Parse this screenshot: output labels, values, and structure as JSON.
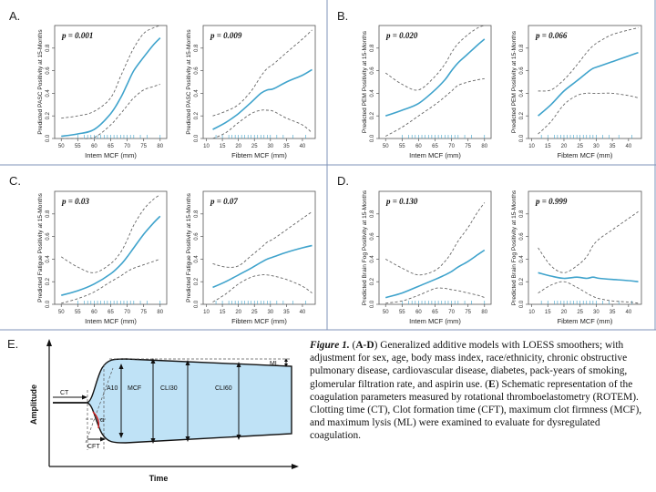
{
  "chart_data": [
    {
      "type": "line",
      "panel": "A.",
      "p_value": "p = 0.001",
      "ylabel": "Predicted PASC Positivity at 15-Months",
      "xlabel": "Intem MCF (mm)",
      "xlim": [
        48,
        82
      ],
      "ylim": [
        0,
        1
      ],
      "xticks": [
        50,
        55,
        60,
        65,
        70,
        75,
        80
      ],
      "yticks": [
        0.0,
        0.2,
        0.4,
        0.6,
        0.8
      ],
      "x": [
        50,
        55,
        60,
        65,
        68,
        70,
        72,
        75,
        78,
        80
      ],
      "series": [
        {
          "role": "fit",
          "values": [
            0.02,
            0.04,
            0.08,
            0.22,
            0.36,
            0.48,
            0.6,
            0.72,
            0.83,
            0.89
          ]
        },
        {
          "role": "upper",
          "values": [
            0.18,
            0.2,
            0.24,
            0.36,
            0.55,
            0.68,
            0.8,
            0.93,
            0.98,
            1.0
          ]
        },
        {
          "role": "lower",
          "values": [
            0.0,
            0.0,
            0.01,
            0.12,
            0.22,
            0.29,
            0.36,
            0.43,
            0.46,
            0.48
          ]
        }
      ],
      "rug": [
        55,
        57,
        58,
        59,
        60,
        61,
        62,
        63,
        64,
        65,
        66,
        67,
        68,
        69,
        70,
        71,
        72,
        74,
        76,
        80
      ]
    },
    {
      "type": "line",
      "panel": "",
      "p_value": "p = 0.009",
      "ylabel": "Predicted PASC Positivity at 15-Months",
      "xlabel": "Fibtem MCF (mm)",
      "xlim": [
        9,
        44
      ],
      "ylim": [
        0,
        1
      ],
      "xticks": [
        10,
        15,
        20,
        25,
        30,
        35,
        40
      ],
      "yticks": [
        0.0,
        0.2,
        0.4,
        0.6,
        0.8
      ],
      "x": [
        12,
        16,
        20,
        24,
        27,
        29,
        31,
        35,
        40,
        43
      ],
      "series": [
        {
          "role": "fit",
          "values": [
            0.08,
            0.14,
            0.22,
            0.32,
            0.4,
            0.43,
            0.44,
            0.5,
            0.56,
            0.61
          ]
        },
        {
          "role": "upper",
          "values": [
            0.2,
            0.24,
            0.3,
            0.42,
            0.55,
            0.62,
            0.66,
            0.76,
            0.88,
            0.96
          ]
        },
        {
          "role": "lower",
          "values": [
            0.0,
            0.05,
            0.14,
            0.22,
            0.25,
            0.25,
            0.24,
            0.18,
            0.12,
            0.05
          ]
        }
      ],
      "rug": [
        13,
        15,
        17,
        18,
        19,
        20,
        21,
        22,
        23,
        24,
        25,
        26,
        27,
        28,
        29,
        30,
        32,
        34,
        37,
        41
      ]
    },
    {
      "type": "line",
      "panel": "B.",
      "p_value": "p = 0.020",
      "ylabel": "Predicted PEM Positivity at 15-Months",
      "xlabel": "Intem MCF (mm)",
      "xlim": [
        48,
        82
      ],
      "ylim": [
        0,
        1
      ],
      "xticks": [
        50,
        55,
        60,
        65,
        70,
        75,
        80
      ],
      "yticks": [
        0.0,
        0.2,
        0.4,
        0.6,
        0.8
      ],
      "x": [
        50,
        55,
        60,
        65,
        68,
        70,
        72,
        75,
        78,
        80
      ],
      "series": [
        {
          "role": "fit",
          "values": [
            0.2,
            0.25,
            0.31,
            0.43,
            0.52,
            0.6,
            0.67,
            0.75,
            0.83,
            0.88
          ]
        },
        {
          "role": "upper",
          "values": [
            0.58,
            0.48,
            0.43,
            0.55,
            0.66,
            0.76,
            0.84,
            0.92,
            0.98,
            1.0
          ]
        },
        {
          "role": "lower",
          "values": [
            0.02,
            0.1,
            0.2,
            0.3,
            0.37,
            0.42,
            0.47,
            0.5,
            0.52,
            0.53
          ]
        }
      ],
      "rug": [
        55,
        57,
        58,
        59,
        60,
        61,
        62,
        63,
        64,
        65,
        66,
        67,
        68,
        69,
        70,
        71,
        72,
        74,
        76,
        80
      ]
    },
    {
      "type": "line",
      "panel": "",
      "p_value": "p = 0.066",
      "ylabel": "Predicted PEM Positivity at 15-Months",
      "xlabel": "Fibtem MCF (mm)",
      "xlim": [
        9,
        44
      ],
      "ylim": [
        0,
        1
      ],
      "xticks": [
        10,
        15,
        20,
        25,
        30,
        35,
        40
      ],
      "yticks": [
        0.0,
        0.2,
        0.4,
        0.6,
        0.8
      ],
      "x": [
        12,
        16,
        20,
        24,
        27,
        29,
        31,
        35,
        40,
        43
      ],
      "series": [
        {
          "role": "fit",
          "values": [
            0.2,
            0.3,
            0.42,
            0.51,
            0.58,
            0.62,
            0.64,
            0.68,
            0.73,
            0.76
          ]
        },
        {
          "role": "upper",
          "values": [
            0.42,
            0.43,
            0.52,
            0.65,
            0.76,
            0.82,
            0.86,
            0.92,
            0.96,
            0.98
          ]
        },
        {
          "role": "lower",
          "values": [
            0.04,
            0.15,
            0.3,
            0.38,
            0.4,
            0.4,
            0.4,
            0.4,
            0.38,
            0.36
          ]
        }
      ],
      "rug": [
        13,
        15,
        17,
        18,
        19,
        20,
        21,
        22,
        23,
        24,
        25,
        26,
        27,
        28,
        29,
        30,
        32,
        34,
        37,
        41
      ]
    },
    {
      "type": "line",
      "panel": "C.",
      "p_value": "p = 0.03",
      "ylabel": "Predicted Fatigue Positivity at 15-Months",
      "xlabel": "Intem MCF (mm)",
      "xlim": [
        48,
        82
      ],
      "ylim": [
        0,
        1
      ],
      "xticks": [
        50,
        55,
        60,
        65,
        70,
        75,
        80
      ],
      "yticks": [
        0.0,
        0.2,
        0.4,
        0.6,
        0.8
      ],
      "x": [
        50,
        55,
        60,
        65,
        68,
        70,
        72,
        75,
        78,
        80
      ],
      "series": [
        {
          "role": "fit",
          "values": [
            0.08,
            0.12,
            0.18,
            0.27,
            0.35,
            0.42,
            0.5,
            0.62,
            0.72,
            0.78
          ]
        },
        {
          "role": "upper",
          "values": [
            0.42,
            0.33,
            0.28,
            0.36,
            0.46,
            0.57,
            0.7,
            0.84,
            0.93,
            0.97
          ]
        },
        {
          "role": "lower",
          "values": [
            0.01,
            0.05,
            0.11,
            0.2,
            0.25,
            0.29,
            0.32,
            0.35,
            0.38,
            0.4
          ]
        }
      ],
      "rug": [
        55,
        57,
        58,
        59,
        60,
        61,
        62,
        63,
        64,
        65,
        66,
        67,
        68,
        69,
        70,
        71,
        72,
        74,
        76,
        80
      ]
    },
    {
      "type": "line",
      "panel": "",
      "p_value": "p = 0.07",
      "ylabel": "Predicted Fatigue Positivity at 15-Months",
      "xlabel": "Fibtem MCF (mm)",
      "xlim": [
        9,
        44
      ],
      "ylim": [
        0,
        1
      ],
      "xticks": [
        10,
        15,
        20,
        25,
        30,
        35,
        40
      ],
      "yticks": [
        0.0,
        0.2,
        0.4,
        0.6,
        0.8
      ],
      "x": [
        12,
        16,
        20,
        24,
        27,
        29,
        31,
        35,
        40,
        43
      ],
      "series": [
        {
          "role": "fit",
          "values": [
            0.15,
            0.2,
            0.26,
            0.32,
            0.37,
            0.4,
            0.42,
            0.46,
            0.5,
            0.52
          ]
        },
        {
          "role": "upper",
          "values": [
            0.36,
            0.33,
            0.34,
            0.43,
            0.5,
            0.55,
            0.58,
            0.66,
            0.76,
            0.82
          ]
        },
        {
          "role": "lower",
          "values": [
            0.02,
            0.09,
            0.18,
            0.24,
            0.26,
            0.26,
            0.25,
            0.22,
            0.16,
            0.1
          ]
        }
      ],
      "rug": [
        13,
        15,
        17,
        18,
        19,
        20,
        21,
        22,
        23,
        24,
        25,
        26,
        27,
        28,
        29,
        30,
        32,
        34,
        37,
        41
      ]
    },
    {
      "type": "line",
      "panel": "D.",
      "p_value": "p = 0.130",
      "ylabel": "Predicted Brain Fog Positivity at 15-Months",
      "xlabel": "Intem MCF (mm)",
      "xlim": [
        48,
        82
      ],
      "ylim": [
        0,
        1
      ],
      "xticks": [
        50,
        55,
        60,
        65,
        70,
        75,
        80
      ],
      "yticks": [
        0.0,
        0.2,
        0.4,
        0.6,
        0.8
      ],
      "x": [
        50,
        55,
        60,
        65,
        68,
        70,
        72,
        75,
        78,
        80
      ],
      "series": [
        {
          "role": "fit",
          "values": [
            0.06,
            0.1,
            0.16,
            0.22,
            0.26,
            0.29,
            0.33,
            0.38,
            0.44,
            0.48
          ]
        },
        {
          "role": "upper",
          "values": [
            0.4,
            0.32,
            0.26,
            0.3,
            0.38,
            0.46,
            0.56,
            0.68,
            0.82,
            0.9
          ]
        },
        {
          "role": "lower",
          "values": [
            0.01,
            0.03,
            0.08,
            0.14,
            0.14,
            0.13,
            0.12,
            0.1,
            0.08,
            0.06
          ]
        }
      ],
      "rug": [
        55,
        57,
        58,
        59,
        60,
        61,
        62,
        63,
        64,
        65,
        66,
        67,
        68,
        69,
        70,
        71,
        72,
        74,
        76,
        80
      ]
    },
    {
      "type": "line",
      "panel": "",
      "p_value": "p = 0.999",
      "ylabel": "Predicted Brain Fog Positivity at 15-Months",
      "xlabel": "Fibtem MCF (mm)",
      "xlim": [
        9,
        44
      ],
      "ylim": [
        0,
        1
      ],
      "xticks": [
        10,
        15,
        20,
        25,
        30,
        35,
        40
      ],
      "yticks": [
        0.0,
        0.2,
        0.4,
        0.6,
        0.8
      ],
      "x": [
        12,
        16,
        20,
        24,
        27,
        29,
        31,
        35,
        40,
        43
      ],
      "series": [
        {
          "role": "fit",
          "values": [
            0.28,
            0.25,
            0.23,
            0.24,
            0.23,
            0.24,
            0.23,
            0.22,
            0.21,
            0.2
          ]
        },
        {
          "role": "upper",
          "values": [
            0.5,
            0.34,
            0.28,
            0.34,
            0.42,
            0.52,
            0.58,
            0.66,
            0.76,
            0.82
          ]
        },
        {
          "role": "lower",
          "values": [
            0.1,
            0.17,
            0.2,
            0.15,
            0.1,
            0.07,
            0.05,
            0.03,
            0.02,
            0.01
          ]
        }
      ],
      "rug": [
        13,
        15,
        17,
        18,
        19,
        20,
        21,
        22,
        23,
        24,
        25,
        26,
        27,
        28,
        29,
        30,
        32,
        34,
        37,
        41
      ]
    }
  ],
  "schematic": {
    "panel": "E.",
    "xlabel": "Time",
    "ylabel": "Amplitude",
    "labels": {
      "ct": "CT",
      "cft": "CFT",
      "alpha": "α",
      "a10": "A10",
      "mcf": "MCF",
      "cli30": "CLI30",
      "cli60": "CLI60",
      "ml": "ML"
    },
    "colors": {
      "fill": "#bfe2f6",
      "outline": "#111111",
      "angle": "#d42020"
    }
  },
  "caption": {
    "figure_label": "Figure 1.",
    "segments": [
      {
        "t": " (",
        "b": false
      },
      {
        "t": "A-D",
        "b": true
      },
      {
        "t": ") Generalized additive models with LOESS smoothers; with adjustment for sex, age, body mass index, race/ethnicity, chronic obstructive pulmonary disease, cardiovascular disease, diabetes, pack-years of smoking, glomerular filtration rate, and aspirin use. (",
        "b": false
      },
      {
        "t": "E",
        "b": true
      },
      {
        "t": ") Schematic representation of the coagulation parameters measured by rotational thromboelastometry (ROTEM). Clotting time (CT), Clot formation time (CFT), maximum clot firmness (MCF), and maximum lysis (ML) were examined to evaluate for dysregulated coagulation.",
        "b": false
      }
    ]
  },
  "colors": {
    "fit": "#3fa3cc",
    "ci": "#666666",
    "panel_border": "#7f93b8"
  }
}
